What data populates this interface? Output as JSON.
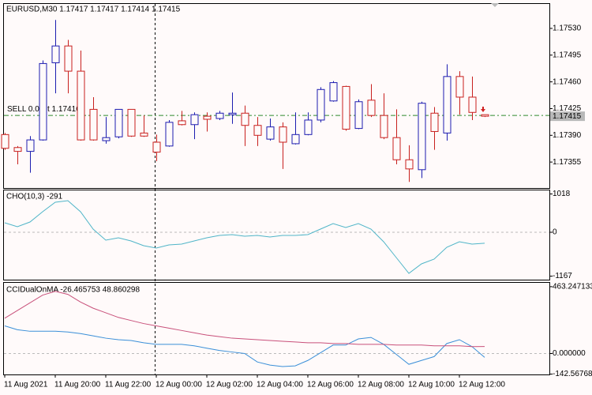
{
  "chart_data": [
    {
      "type": "candlestick",
      "title": "EURUSD,M30  1.17417 1.17417 1.17414 1.17415",
      "categories": [
        "11 Aug 2021",
        null,
        null,
        null,
        "11 Aug 20:00",
        null,
        null,
        null,
        "11 Aug 22:00",
        null,
        null,
        null,
        "12 Aug 00:00",
        null,
        null,
        null,
        "12 Aug 02:00",
        null,
        null,
        null,
        "12 Aug 04:00",
        null,
        null,
        null,
        "12 Aug 06:00",
        null,
        null,
        null,
        "12 Aug 08:00",
        null,
        null,
        null,
        "12 Aug 10:00",
        null,
        null,
        null,
        "12 Aug 12:00",
        null,
        null
      ],
      "open": [
        1.17391,
        1.17374,
        1.17369,
        1.17384,
        1.17485,
        1.17507,
        1.17474,
        1.17424,
        1.17383,
        1.17388,
        1.17424,
        1.17393,
        1.17381,
        1.17376,
        1.17409,
        1.17404,
        1.17415,
        1.17412,
        1.17417,
        1.17419,
        1.17403,
        1.17385,
        1.17401,
        1.17379,
        1.17391,
        1.1741,
        1.17435,
        1.17454,
        1.17399,
        1.17436,
        1.17416,
        1.17387,
        1.17358,
        1.17345,
        1.17419,
        1.17393,
        1.17467,
        1.1744,
        1.17417
      ],
      "high": [
        1.17393,
        1.17376,
        1.17389,
        1.17488,
        1.17541,
        1.17515,
        1.17501,
        1.1744,
        1.17414,
        1.17424,
        1.17424,
        1.17416,
        1.17391,
        1.1741,
        1.17422,
        1.1742,
        1.1742,
        1.17422,
        1.17446,
        1.17429,
        1.17414,
        1.17412,
        1.17407,
        1.1742,
        1.1742,
        1.17453,
        1.17461,
        1.17455,
        1.17437,
        1.17457,
        1.17445,
        1.17424,
        1.17377,
        1.17434,
        1.17427,
        1.17483,
        1.17474,
        1.17467,
        1.17417
      ],
      "low": [
        1.17371,
        1.17352,
        1.17341,
        1.17383,
        1.17445,
        1.17445,
        1.17383,
        1.17383,
        1.17379,
        1.17386,
        1.17388,
        1.17388,
        1.17356,
        1.17375,
        1.17403,
        1.17385,
        1.17395,
        1.1741,
        1.17405,
        1.17376,
        1.17376,
        1.17383,
        1.17346,
        1.17378,
        1.1739,
        1.17407,
        1.17434,
        1.17396,
        1.17398,
        1.17414,
        1.17385,
        1.17352,
        1.17329,
        1.17334,
        1.17371,
        1.17383,
        1.17417,
        1.1741,
        1.17414
      ],
      "close": [
        1.17373,
        1.17369,
        1.17384,
        1.17484,
        1.17507,
        1.17474,
        1.17384,
        1.17384,
        1.17387,
        1.17424,
        1.17389,
        1.17389,
        1.17368,
        1.17407,
        1.17404,
        1.17417,
        1.17411,
        1.17419,
        1.17419,
        1.17403,
        1.1739,
        1.17401,
        1.17381,
        1.17391,
        1.1741,
        1.1745,
        1.17459,
        1.17398,
        1.17434,
        1.17416,
        1.17387,
        1.17358,
        1.17346,
        1.17432,
        1.17395,
        1.17467,
        1.1744,
        1.1742,
        1.17415
      ],
      "up_color": "#1c1cb0",
      "down_color": "#c8201e",
      "ylim": [
        1.17321,
        1.17562
      ],
      "yticks": [
        {
          "value": 1.1753,
          "label": "1.17530"
        },
        1.17495,
        {
          "value": 1.1746,
          "label": "1.17460"
        },
        1.17425,
        {
          "value": 1.1739,
          "label": "1.17390"
        },
        1.17355
      ],
      "current_price": 1.17415,
      "sell_price": 1.17416,
      "sell_color": "#2e8b2e",
      "annotations": [
        "SELL 0.0",
        "t 1.17416"
      ]
    },
    {
      "type": "line",
      "title": "CHO(10,3) -291",
      "series": [
        {
          "name": "CHO",
          "color": "#4fb5c8",
          "values": [
            252,
            147,
            273,
            546,
            798,
            840,
            546,
            84,
            -210,
            -147,
            -231,
            -357,
            -420,
            -336,
            -315,
            -231,
            -147,
            -84,
            -63,
            -105,
            -84,
            -126,
            -84,
            -84,
            -63,
            84,
            231,
            126,
            231,
            84,
            -252,
            -672,
            -1092,
            -840,
            -714,
            -399,
            -252,
            -315,
            -291
          ]
        }
      ],
      "ylim": [
        -1260,
        1113
      ],
      "yticks": [
        1018,
        0,
        -1167
      ]
    },
    {
      "type": "line",
      "title": "CCIDualOnMA -26.465753 48.860298",
      "series": [
        {
          "name": "CCI",
          "color": "#3a8fd8",
          "values": [
            191.7,
            165.1,
            154.4,
            154.4,
            154.4,
            149.1,
            138.5,
            122.5,
            106.5,
            95.9,
            90.5,
            74.6,
            63.9,
            63.9,
            63.9,
            53.3,
            37.3,
            21.3,
            10.7,
            0,
            -58.6,
            -79.9,
            -90.5,
            -85.2,
            -47.9,
            5.3,
            58.6,
            58.6,
            101.2,
            111.8,
            63.9,
            -5.3,
            -74.6,
            -47.9,
            -21.3,
            69.2,
            95.9,
            47.9,
            -26.465753
          ]
        },
        {
          "name": "MA",
          "color": "#c8507a",
          "values": [
            244.9,
            298.2,
            351.4,
            404.7,
            431.3,
            410.0,
            356.8,
            314.2,
            282.2,
            250.3,
            229.0,
            207.7,
            191.7,
            175.7,
            159.8,
            143.8,
            127.8,
            117.2,
            106.5,
            101.2,
            95.9,
            90.5,
            85.2,
            79.9,
            74.6,
            74.6,
            69.2,
            69.2,
            63.9,
            63.9,
            63.9,
            58.6,
            58.6,
            58.6,
            53.3,
            53.3,
            53.3,
            47.9,
            48.860298
          ]
        }
      ],
      "ylim": [
        -145,
        490
      ],
      "yticks": [
        {
          "value": 463.247133,
          "label": "463.247133"
        },
        {
          "value": 0,
          "label": "0.000000"
        },
        {
          "value": -142.56768,
          "label": "-142.56768"
        }
      ]
    }
  ]
}
